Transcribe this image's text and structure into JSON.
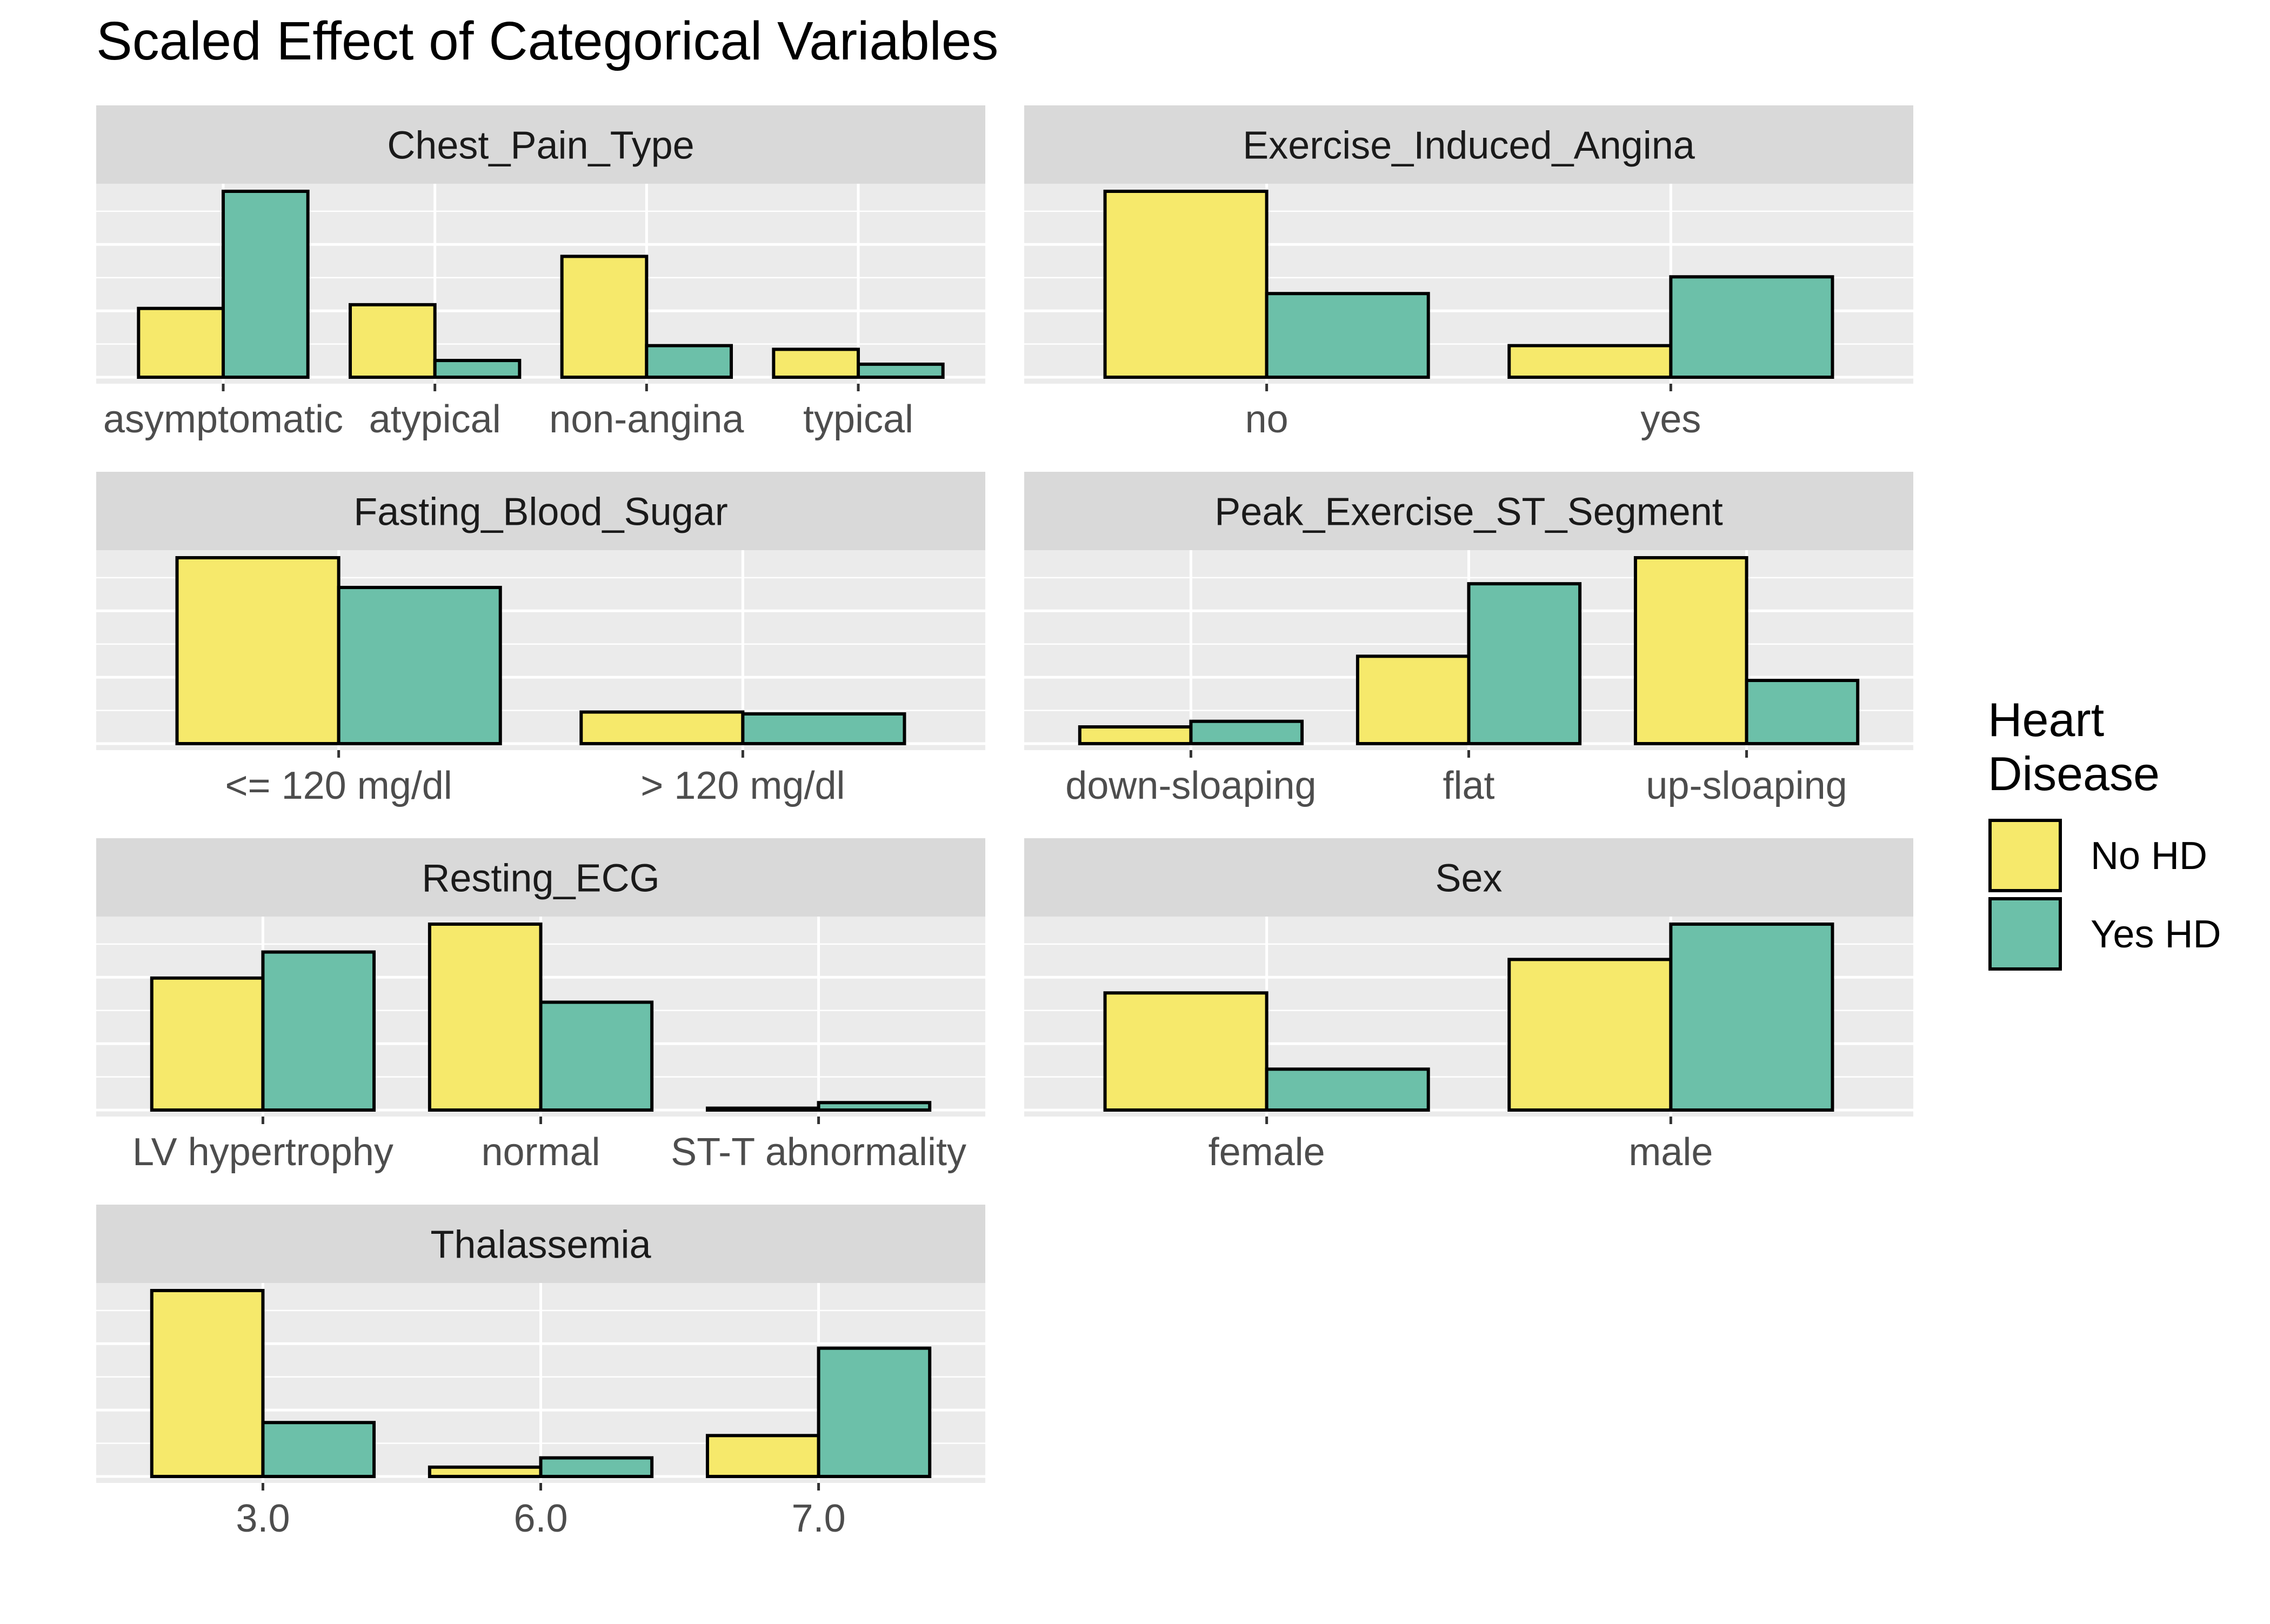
{
  "chart_data": {
    "type": "bar",
    "title": "Scaled Effect of Categorical Variables",
    "legend": {
      "title_lines": [
        "Heart",
        "Disease"
      ],
      "placement": "right",
      "entries": [
        {
          "label": "No HD",
          "color": "#F6E96B"
        },
        {
          "label": "Yes HD",
          "color": "#6CC0A9"
        }
      ]
    },
    "series_names": [
      "No HD",
      "Yes HD"
    ],
    "grid": true,
    "panels": [
      {
        "name": "Chest_Pain_Type",
        "categories": [
          "asymptomatic",
          "atypical",
          "non-angina",
          "typical"
        ],
        "values": [
          [
            0.37,
            1.0
          ],
          [
            0.39,
            0.09
          ],
          [
            0.65,
            0.17
          ],
          [
            0.15,
            0.07
          ]
        ]
      },
      {
        "name": "Exercise_Induced_Angina",
        "categories": [
          "no",
          "yes"
        ],
        "values": [
          [
            1.0,
            0.45
          ],
          [
            0.17,
            0.54
          ]
        ]
      },
      {
        "name": "Fasting_Blood_Sugar",
        "categories": [
          "<= 120 mg/dl",
          "> 120 mg/dl"
        ],
        "values": [
          [
            1.0,
            0.84
          ],
          [
            0.17,
            0.16
          ]
        ]
      },
      {
        "name": "Peak_Exercise_ST_Segment",
        "categories": [
          "down-sloaping",
          "flat",
          "up-sloaping"
        ],
        "values": [
          [
            0.09,
            0.12
          ],
          [
            0.47,
            0.86
          ],
          [
            1.0,
            0.34
          ]
        ]
      },
      {
        "name": "Resting_ECG",
        "categories": [
          "LV hypertrophy",
          "normal",
          "ST-T abnormality"
        ],
        "values": [
          [
            0.71,
            0.85
          ],
          [
            1.0,
            0.58
          ],
          [
            0.01,
            0.04
          ]
        ]
      },
      {
        "name": "Sex",
        "categories": [
          "female",
          "male"
        ],
        "values": [
          [
            0.63,
            0.22
          ],
          [
            0.81,
            1.0
          ]
        ]
      },
      {
        "name": "Thalassemia",
        "categories": [
          "3.0",
          "6.0",
          "7.0"
        ],
        "values": [
          [
            1.0,
            0.29
          ],
          [
            0.05,
            0.1
          ],
          [
            0.22,
            0.69
          ]
        ]
      }
    ]
  }
}
